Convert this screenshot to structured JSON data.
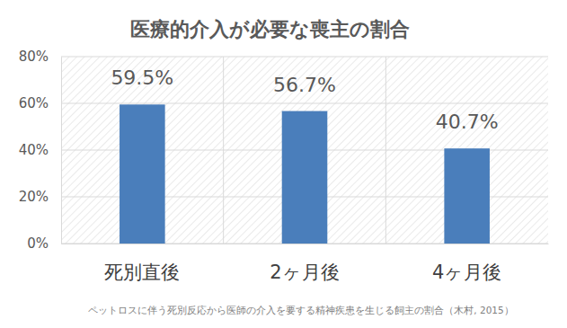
{
  "chart_data": {
    "type": "bar",
    "title": "医療的介入が必要な喪主の割合",
    "categories": [
      "死別直後",
      "2ヶ月後",
      "4ヶ月後"
    ],
    "values": [
      59.5,
      56.7,
      40.7
    ],
    "value_labels": [
      "59.5%",
      "56.7%",
      "40.7%"
    ],
    "color": "#4a7ebb",
    "ylim": [
      0,
      80
    ],
    "yticks": [
      {
        "value": 0,
        "label": "0%"
      },
      {
        "value": 20,
        "label": "20%"
      },
      {
        "value": 40,
        "label": "40%"
      },
      {
        "value": 60,
        "label": "60%"
      },
      {
        "value": 80,
        "label": "80%"
      }
    ],
    "grid": true,
    "data_labels": true,
    "annotations": [
      "ペットロスに伴う死別反応から医師の介入を要する精神疾患を生じる飼主の割合（木村, 2015）"
    ]
  }
}
